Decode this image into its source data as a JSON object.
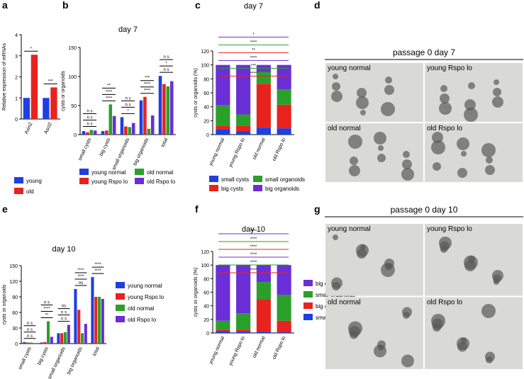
{
  "chart_data": [
    {
      "type": "bar",
      "panel": "a",
      "ylabel": "Relative expression of mRNAs",
      "categories": [
        "Axin2",
        "Ascl2"
      ],
      "series": [
        {
          "name": "young",
          "color": "#1f3fe0",
          "values": [
            1.0,
            1.0
          ]
        },
        {
          "name": "old",
          "color": "#e8231e",
          "values": [
            3.05,
            1.5
          ]
        }
      ],
      "ylim": [
        0,
        4
      ],
      "yticks": [
        0,
        1,
        2,
        3,
        4
      ],
      "legend": "below",
      "significance": [
        [
          "*"
        ],
        [
          "***"
        ]
      ]
    },
    {
      "type": "bar",
      "panel": "b",
      "title": "day 7",
      "ylabel": "cysts or organoids",
      "categories": [
        "small cysts",
        "big cysts",
        "small organoids",
        "big organoids",
        "total"
      ],
      "series": [
        {
          "name": "young normal",
          "color": "#1f3fe0",
          "values": [
            6,
            6,
            30,
            59,
            101
          ]
        },
        {
          "name": "young Rspo lo",
          "color": "#e8231e",
          "values": [
            4,
            7,
            14,
            65,
            87
          ]
        },
        {
          "name": "old normal",
          "color": "#2aa02a",
          "values": [
            8,
            52,
            13,
            10,
            83
          ]
        },
        {
          "name": "old Rspo lo",
          "color": "#6a2fd6",
          "values": [
            7,
            32,
            20,
            33,
            92
          ]
        }
      ],
      "ylim": [
        0,
        150
      ],
      "yticks": [
        0,
        50,
        100,
        150
      ],
      "legend": "below",
      "significance": [
        [
          "n s",
          "n s",
          "n s"
        ],
        [
          "****",
          "****",
          "**"
        ],
        [
          "*",
          "n s",
          "n s"
        ],
        [
          "****",
          "****",
          "***"
        ],
        [
          "n s",
          "*",
          "n s"
        ]
      ]
    },
    {
      "type": "stacked_bar",
      "panel": "c",
      "title": "day 7",
      "ylabel": "cysts or organoids (%)",
      "categories": [
        "young normal",
        "young Rspo lo",
        "old normal",
        "old Rspo lo"
      ],
      "series": [
        {
          "name": "small cysts",
          "color": "#1f3fe0",
          "values": [
            8,
            5,
            10,
            9
          ]
        },
        {
          "name": "big cysts",
          "color": "#e8231e",
          "values": [
            5,
            8,
            63,
            34
          ]
        },
        {
          "name": "small organoids",
          "color": "#2aa02a",
          "values": [
            29,
            16,
            17,
            22
          ]
        },
        {
          "name": "big organoids",
          "color": "#6a2fd6",
          "values": [
            58,
            71,
            10,
            35
          ]
        }
      ],
      "ylim": [
        0,
        120
      ],
      "yticks": [
        0,
        20,
        40,
        60,
        80,
        100,
        120
      ],
      "legend": "below",
      "significance": [
        {
          "label": "****",
          "color": "#e8231e"
        },
        {
          "label": "***",
          "color": "#2aa02a"
        },
        {
          "label": "****",
          "color": "#6a2fd6"
        },
        {
          "label": "**",
          "color": "#e8231e"
        },
        {
          "label": "****",
          "color": "#2aa02a"
        },
        {
          "label": "*",
          "color": "#6a2fd6"
        }
      ]
    },
    {
      "type": "bar",
      "panel": "e",
      "title": "day 10",
      "ylabel": "cysts or organoids",
      "categories": [
        "small cysts",
        "big cysts",
        "small organoids",
        "big organoids",
        "total"
      ],
      "series": [
        {
          "name": "young normal",
          "color": "#1f3fe0",
          "values": [
            3,
            2,
            20,
            105,
            128
          ]
        },
        {
          "name": "young Rspo lo",
          "color": "#e8231e",
          "values": [
            2,
            3,
            20,
            65,
            90
          ]
        },
        {
          "name": "old normal",
          "color": "#2aa02a",
          "values": [
            2,
            43,
            22,
            20,
            90
          ]
        },
        {
          "name": "old Rspo lo",
          "color": "#6a2fd6",
          "values": [
            1,
            13,
            36,
            38,
            86
          ]
        }
      ],
      "ylim": [
        0,
        150
      ],
      "yticks": [
        0,
        30,
        60,
        90,
        120,
        150
      ],
      "legend": "right",
      "significance": [
        [
          "n s",
          "n s",
          "n s"
        ],
        [
          "**",
          "****",
          "n s"
        ],
        [
          "n s",
          "n s",
          "ns"
        ],
        [
          "ns",
          "****",
          "****"
        ],
        [
          "****",
          "****"
        ]
      ]
    },
    {
      "type": "stacked_bar",
      "panel": "f",
      "title": "day 10",
      "ylabel": "cysts or organoids (%)",
      "categories": [
        "young normal",
        "young Rspo lo",
        "old normal",
        "old Rspo lo"
      ],
      "series": [
        {
          "name": "small cysts",
          "color": "#1f3fe0",
          "values": [
            3,
            2,
            2,
            1
          ]
        },
        {
          "name": "big cysts",
          "color": "#e8231e",
          "values": [
            2,
            3,
            48,
            17
          ]
        },
        {
          "name": "small organoids",
          "color": "#2aa02a",
          "values": [
            13,
            24,
            25,
            38
          ]
        },
        {
          "name": "big organoids",
          "color": "#6a2fd6",
          "values": [
            82,
            71,
            25,
            44
          ]
        }
      ],
      "ylim": [
        0,
        120
      ],
      "yticks": [
        0,
        20,
        40,
        60,
        80,
        100,
        120
      ],
      "legend": "right",
      "significance": [
        {
          "label": "****",
          "color": "#e8231e"
        },
        {
          "label": "****",
          "color": "#2aa02a"
        },
        {
          "label": "****",
          "color": "#6a2fd6"
        },
        {
          "label": "****",
          "color": "#e8231e"
        },
        {
          "label": "****",
          "color": "#2aa02a"
        },
        {
          "label": "****",
          "color": "#6a2fd6"
        }
      ]
    }
  ],
  "images": [
    {
      "panel": "d",
      "title": "passage 0 day 7",
      "labels": [
        "young normal",
        "young Rspo lo",
        "old normal",
        "old Rspo lo"
      ]
    },
    {
      "panel": "g",
      "title": "passage 0 day 10",
      "labels": [
        "young normal",
        "young Rspo lo",
        "old normal",
        "old Rspo lo"
      ]
    }
  ]
}
